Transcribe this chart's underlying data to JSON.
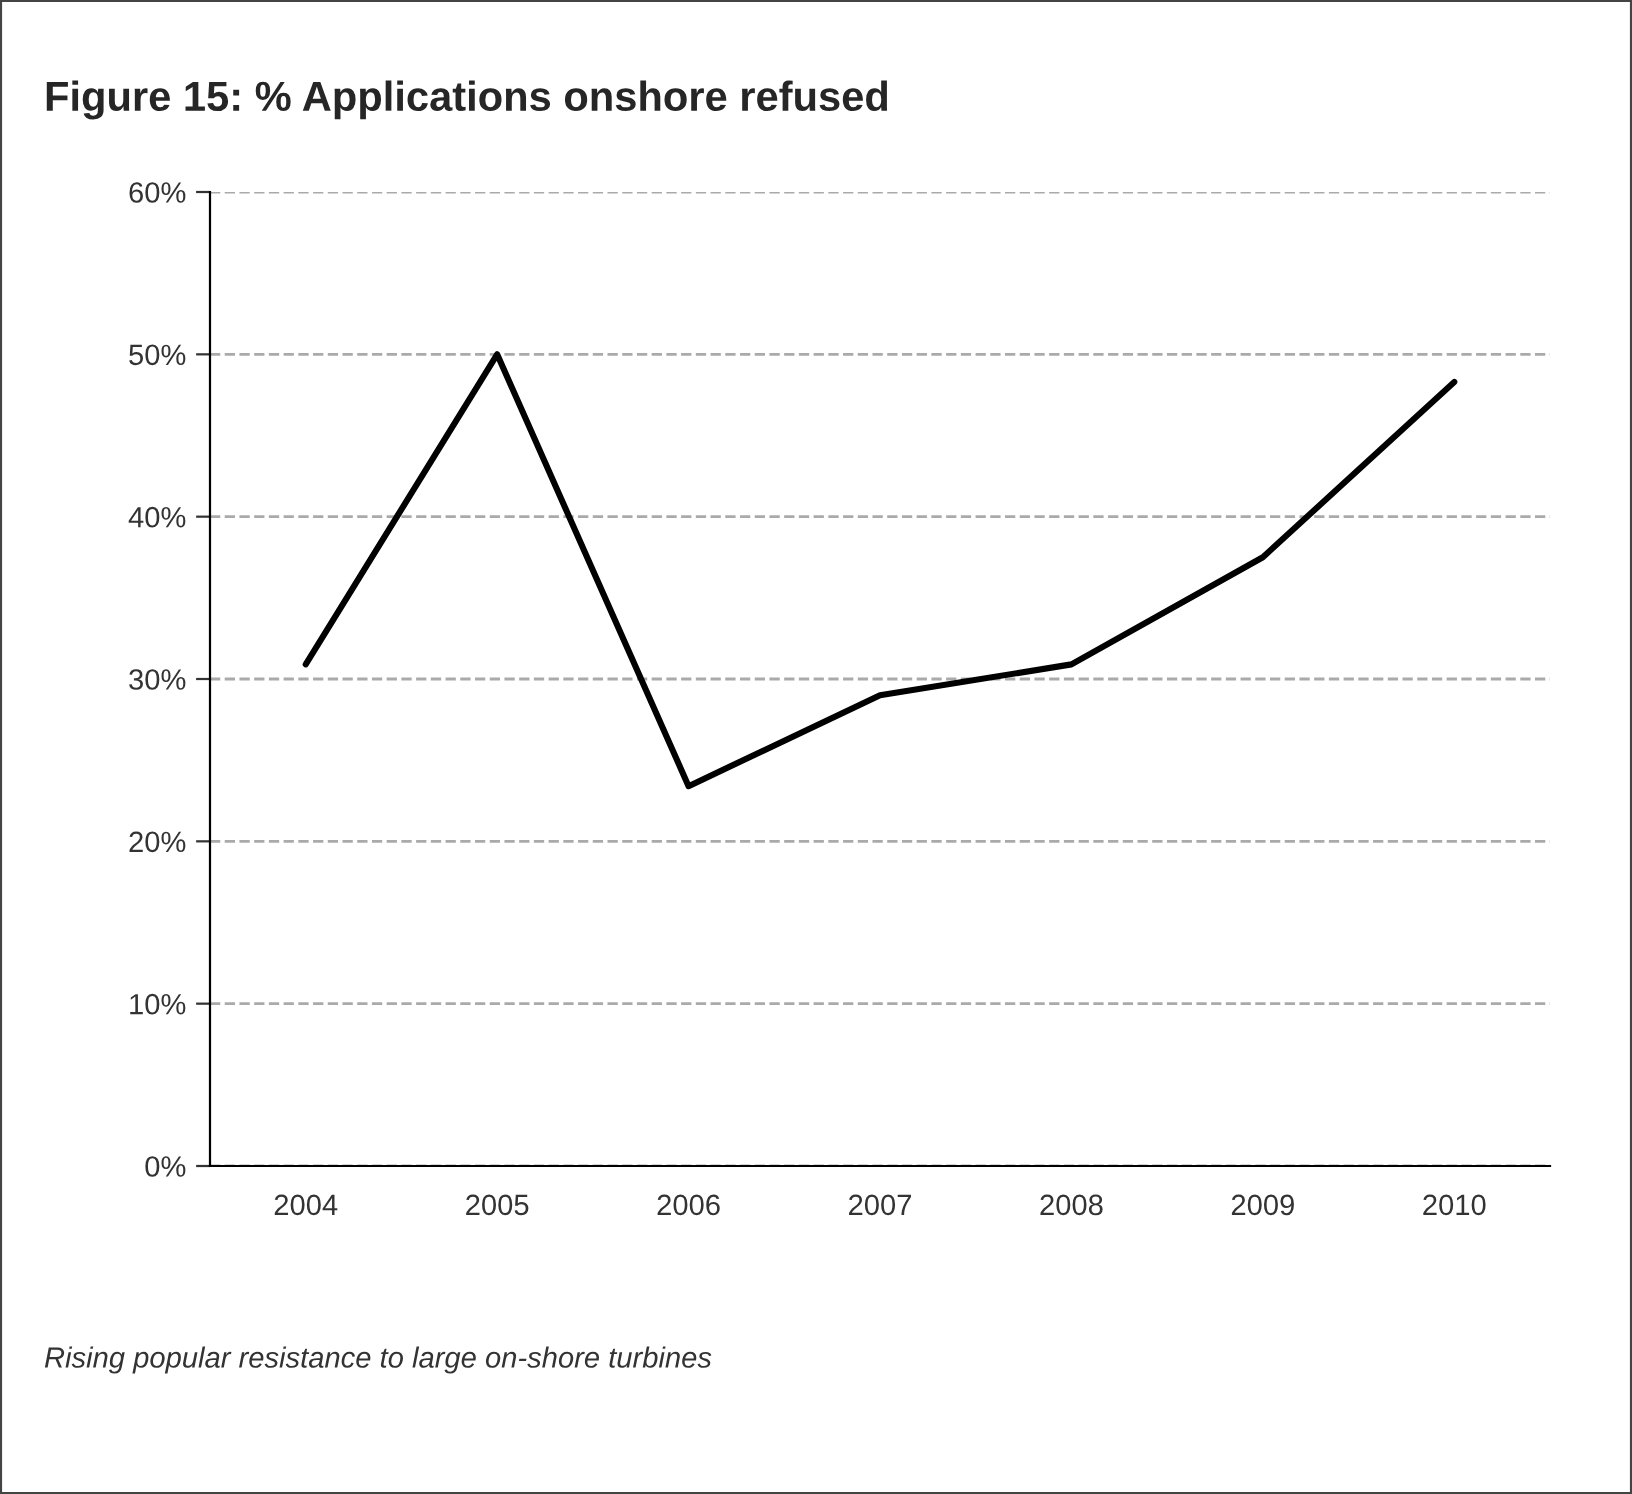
{
  "chart_data": {
    "type": "line",
    "title": "Figure 15: % Applications onshore refused",
    "categories": [
      "2004",
      "2005",
      "2006",
      "2007",
      "2008",
      "2009",
      "2010"
    ],
    "series": [
      {
        "color": "#000000",
        "values": [
          30.9,
          50,
          23.4,
          29.0,
          30.9,
          37.5,
          48.3
        ]
      }
    ],
    "ylim": [
      0,
      60
    ],
    "yticks": [
      {
        "value": 0,
        "label": "0%"
      },
      {
        "value": 10,
        "label": "10%"
      },
      {
        "value": 20,
        "label": "20%"
      },
      {
        "value": 30,
        "label": "30%"
      },
      {
        "value": 40,
        "label": "40%"
      },
      {
        "value": 50,
        "label": "50%"
      },
      {
        "value": 60,
        "label": "60%"
      }
    ],
    "grid": "y",
    "marker": "none",
    "line_style": "solid",
    "annotations": [
      "Rising popular resistance to large on-shore turbines"
    ]
  }
}
